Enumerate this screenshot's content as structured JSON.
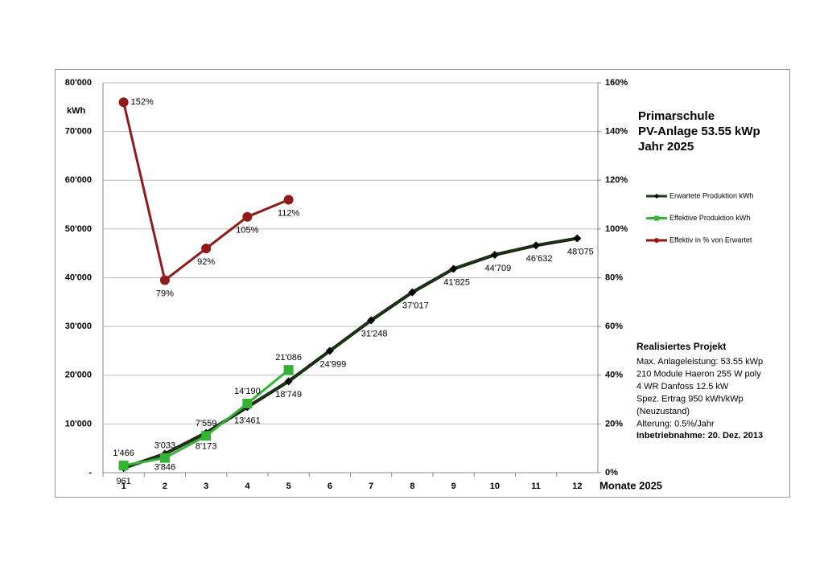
{
  "chart_data": {
    "type": "line",
    "title_lines": [
      "Primarschule",
      "PV-Anlage 53.55 kWp",
      "Jahr 2025"
    ],
    "y_label": "kWh",
    "x_label": "Monate 2025",
    "categories": [
      "1",
      "2",
      "3",
      "4",
      "5",
      "6",
      "7",
      "8",
      "9",
      "10",
      "11",
      "12"
    ],
    "ylim": [
      0,
      80000
    ],
    "yticks": [
      {
        "value": 0,
        "label": "-"
      },
      {
        "value": 10000,
        "label": "10'000"
      },
      {
        "value": 20000,
        "label": "20'000"
      },
      {
        "value": 30000,
        "label": "30'000"
      },
      {
        "value": 40000,
        "label": "40'000"
      },
      {
        "value": 50000,
        "label": "50'000"
      },
      {
        "value": 60000,
        "label": "60'000"
      },
      {
        "value": 70000,
        "label": "70'000"
      },
      {
        "value": 80000,
        "label": "80'000"
      }
    ],
    "y2lim": [
      0,
      160
    ],
    "y2ticks": [
      {
        "value": 0,
        "label": "0%"
      },
      {
        "value": 20,
        "label": "20%"
      },
      {
        "value": 40,
        "label": "40%"
      },
      {
        "value": 60,
        "label": "60%"
      },
      {
        "value": 80,
        "label": "80%"
      },
      {
        "value": 100,
        "label": "100%"
      },
      {
        "value": 120,
        "label": "120%"
      },
      {
        "value": 140,
        "label": "140%"
      },
      {
        "value": 160,
        "label": "160%"
      }
    ],
    "grid": true,
    "series": [
      {
        "name": "Erwartete Produktion kWh",
        "color": "#1b3d12",
        "marker": "diamond",
        "values": [
          961,
          3846,
          8173,
          13461,
          18749,
          24999,
          31248,
          37017,
          41825,
          44709,
          46632,
          48075
        ],
        "value_labels": [
          "961",
          "3'846",
          "8'173",
          "13'461",
          "18'749",
          "24'999",
          "31'248",
          "37'017",
          "41'825",
          "44'709",
          "46'632",
          "48'075"
        ]
      },
      {
        "name": "Effektive Produktion kWh",
        "color": "#33b233",
        "marker": "square",
        "values": [
          1466,
          3033,
          7559,
          14190,
          21086,
          null,
          null,
          null,
          null,
          null,
          null,
          null
        ],
        "value_labels": [
          "1'466",
          "3'033",
          "7'559",
          "14'190",
          "21'086",
          null,
          null,
          null,
          null,
          null,
          null,
          null
        ]
      },
      {
        "name": "Effektiv in % von Erwartet",
        "color": "#8e1a1a",
        "marker": "circle",
        "axis": "y2",
        "values": [
          152,
          79,
          92,
          105,
          112,
          null,
          null,
          null,
          null,
          null,
          null,
          null
        ],
        "value_labels": [
          "152%",
          "79%",
          "92%",
          "105%",
          "112%",
          null,
          null,
          null,
          null,
          null,
          null,
          null
        ]
      }
    ],
    "notes": {
      "heading": "Realisiertes Projekt",
      "lines": [
        "Max. Anlageleistung: 53.55 kWp",
        "210 Module  Haeron 255 W poly",
        "4 WR Danfoss 12.5 kW",
        "Spez. Ertrag 950 kWh/kWp",
        "(Neuzustand)",
        "Alterung: 0.5%/Jahr"
      ],
      "footer": "Inbetriebnahme:  20. Dez. 2013"
    }
  }
}
